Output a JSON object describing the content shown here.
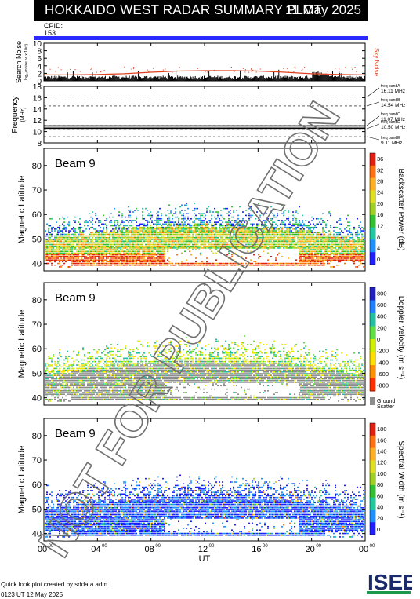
{
  "title": "HOKKAIDO WEST RADAR SUMMARY PLOT",
  "date": "11 May 2025",
  "cpid": {
    "label": "CPID:",
    "value": "153",
    "bar_color": "#2a2aff"
  },
  "footer": {
    "credit": "Quick look plot created by sddata.adm",
    "time": "0123 UT 12 May 2025"
  },
  "logo": {
    "text": "ISEE",
    "icon": "isee-logo"
  },
  "watermark": "NOT FOR PUBLICATION",
  "chart_data": [
    {
      "type": "scatter",
      "panel": "noise",
      "ylabel": "Search Noise",
      "ylabel_sub": "log₁₀(noise lvl x 10¹⁰)",
      "side_label": "Sky Noise",
      "ylim": [
        0,
        10
      ],
      "yticks": [
        0,
        2,
        4,
        6,
        8,
        10
      ],
      "xlim": [
        0,
        24
      ],
      "series": [
        {
          "name": "Sky Noise",
          "color": "#e04020",
          "x": [
            0,
            2,
            4,
            6,
            8,
            10,
            12,
            14,
            16,
            18,
            20,
            22,
            24
          ],
          "y": [
            1.6,
            1.6,
            1.7,
            1.9,
            2.3,
            2.6,
            2.7,
            2.7,
            2.6,
            2.3,
            1.9,
            1.7,
            1.6
          ]
        }
      ]
    },
    {
      "type": "line",
      "panel": "frequency",
      "ylabel": "Frequency",
      "yunit": "(MHz)",
      "ylim": [
        8,
        18
      ],
      "yticks": [
        8,
        10,
        12,
        14,
        16,
        18
      ],
      "xlim": [
        0,
        24
      ],
      "freq_bands": [
        {
          "label": "freq bandA",
          "value": "16.11 MHz",
          "mhz": 16.11
        },
        {
          "label": "freq bandB",
          "value": "14.54 MHz",
          "mhz": 14.54
        },
        {
          "label": "freq bandC",
          "value": "11.07 MHz",
          "mhz": 11.07
        },
        {
          "label": "freq bandD",
          "value": "10.50 MHz",
          "mhz": 10.5
        },
        {
          "label": "freq bandE",
          "value": "9.11 MHz",
          "mhz": 9.11
        }
      ],
      "series": [
        {
          "name": "operating",
          "x": [
            0,
            24
          ],
          "y": [
            10.6,
            10.6
          ]
        },
        {
          "name": "operating2",
          "x": [
            0,
            24
          ],
          "y": [
            11.0,
            11.0
          ]
        }
      ]
    },
    {
      "type": "heatmap",
      "panel": "power",
      "beam_label": "Beam  9",
      "ylabel": "Magnetic Latitude",
      "ylim": [
        37,
        87
      ],
      "yticks": [
        40,
        50,
        60,
        70,
        80
      ],
      "xlim": [
        0,
        24
      ],
      "colorbar": {
        "label": "Backscatter Power (dB)",
        "ticks": [
          "0",
          "4",
          "8",
          "12",
          "16",
          "20",
          "24",
          "28",
          "32",
          "36"
        ],
        "vmin": 0,
        "vmax": 38
      },
      "colors": [
        "#2020ff",
        "#2090ff",
        "#20c8a0",
        "#30c030",
        "#a0d020",
        "#e0e020",
        "#ffb020",
        "#ff7010",
        "#e02010"
      ]
    },
    {
      "type": "heatmap",
      "panel": "velocity",
      "beam_label": "Beam  9",
      "ylabel": "Magnetic Latitude",
      "ylim": [
        37,
        87
      ],
      "yticks": [
        40,
        50,
        60,
        70,
        80
      ],
      "xlim": [
        0,
        24
      ],
      "colorbar": {
        "label": "Doppler Velocity (m s⁻¹)",
        "ticks": [
          "800",
          "600",
          "400",
          "200",
          "0",
          "-200",
          "-400",
          "-600",
          "-800"
        ],
        "vmin": -900,
        "vmax": 900
      },
      "ground_scatter": {
        "label1": "Ground",
        "label2": "Scatter",
        "color": "#8c8c8c"
      },
      "colors": [
        "#ff3000",
        "#ff9000",
        "#ffe000",
        "#d0f000",
        "#60e040",
        "#20c0a0",
        "#2080ff",
        "#2020c0"
      ]
    },
    {
      "type": "heatmap",
      "panel": "width",
      "beam_label": "Beam  9",
      "ylabel": "Magnetic Latitude",
      "ylim": [
        37,
        87
      ],
      "yticks": [
        40,
        50,
        60,
        70,
        80
      ],
      "xlim": [
        0,
        24
      ],
      "colorbar": {
        "label": "Spectral Width (m s⁻¹)",
        "ticks": [
          "0",
          "20",
          "40",
          "60",
          "80",
          "100",
          "120",
          "140",
          "160",
          "180"
        ],
        "vmin": 0,
        "vmax": 190
      },
      "colors": [
        "#2020ff",
        "#2090ff",
        "#20c8a0",
        "#30c030",
        "#a0d020",
        "#e0e020",
        "#ffb020",
        "#ff7010",
        "#e02010"
      ]
    }
  ],
  "xaxis": {
    "label": "UT",
    "ticks": [
      "00",
      "04",
      "08",
      "12",
      "16",
      "20",
      "00"
    ],
    "tick_hours": [
      0,
      4,
      8,
      12,
      16,
      20,
      24
    ],
    "tick_sup": "00"
  }
}
